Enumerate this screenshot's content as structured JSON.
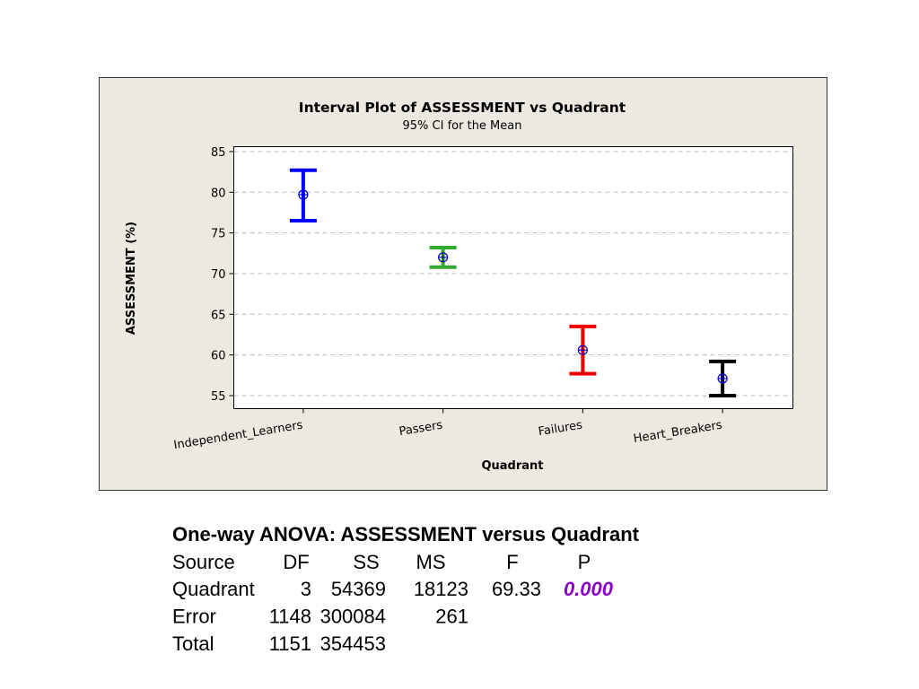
{
  "chart_data": {
    "type": "interval",
    "title": "Interval Plot of ASSESSMENT vs Quadrant",
    "subtitle": "95% CI for the Mean",
    "x_label": "Quadrant",
    "y_label": "ASSESSMENT (%)",
    "categories": [
      "Independent_Learners",
      "Passers",
      "Failures",
      "Heart_Breakers"
    ],
    "values": [
      79.7,
      72.0,
      60.6,
      57.1
    ],
    "ci_low": [
      76.5,
      70.8,
      57.7,
      55.0
    ],
    "ci_high": [
      82.7,
      73.2,
      63.5,
      59.2
    ],
    "colors": [
      "#0000ff",
      "#33aa33",
      "#ee0000",
      "#000000"
    ],
    "marker_color": "#0000cc",
    "ylim": [
      53.4,
      85.6
    ],
    "yticks": [
      55,
      60,
      65,
      70,
      75,
      80,
      85
    ],
    "grid": true
  },
  "anova": {
    "title": "One-way ANOVA: ASSESSMENT versus Quadrant",
    "header": [
      "Source",
      "DF",
      "SS",
      "MS",
      "F",
      "P"
    ],
    "rows": [
      [
        "Quadrant",
        3,
        54369,
        18123,
        69.33,
        "0.000"
      ],
      [
        "Error",
        1148,
        300084,
        261
      ],
      [
        "Total",
        1151,
        354453
      ]
    ]
  }
}
